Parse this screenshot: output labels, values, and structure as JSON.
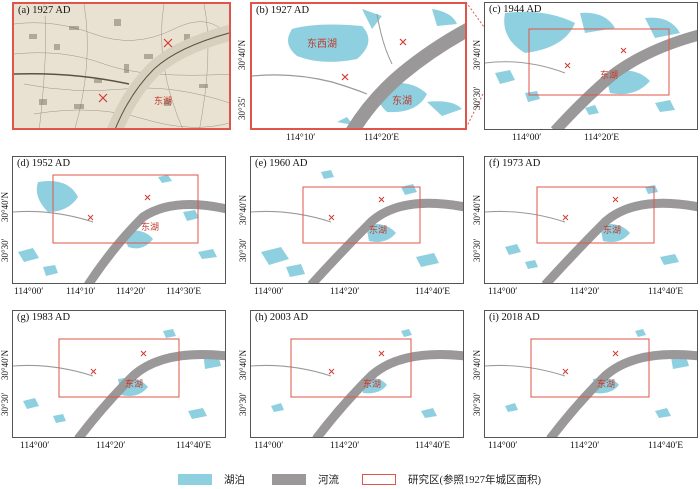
{
  "colors": {
    "lake": "#8fd0e0",
    "river": "#9a9898",
    "study_area": "#e0554a",
    "tributary": "#9a9a9a"
  },
  "panels": {
    "a": {
      "title": "(a) 1927 AD"
    },
    "b": {
      "title": "(b) 1927 AD",
      "lake1": "东西湖",
      "lake2": "东湖",
      "lat": [
        "30°40′N",
        "30°35′"
      ],
      "lon": [
        "114°10′",
        "114°20′E"
      ]
    },
    "c": {
      "title": "(c) 1944 AD",
      "lake": "东湖",
      "lat": [
        "30°40′N",
        "30°30′"
      ],
      "lon": [
        "114°00′",
        "114°20′E"
      ]
    },
    "d": {
      "title": "(d) 1952 AD",
      "lake": "东湖",
      "lat": [
        "30°40′N",
        "30°30′"
      ],
      "lon": [
        "114°00′",
        "114°10′",
        "114°20′",
        "114°30′E"
      ]
    },
    "e": {
      "title": "(e) 1960 AD",
      "lake": "东湖",
      "lat": [
        "30°40′N",
        "30°30′"
      ],
      "lon": [
        "114°00′",
        "114°20′",
        "114°40′E"
      ]
    },
    "f": {
      "title": "(f) 1973 AD",
      "lake": "东湖",
      "lat": [
        "30°40′N",
        "30°30′"
      ],
      "lon": [
        "114°00′",
        "114°20′",
        "114°40′E"
      ]
    },
    "g": {
      "title": "(g) 1983 AD",
      "lake": "东湖",
      "lat": [
        "30°40′N",
        "30°30′"
      ],
      "lon": [
        "114°00′",
        "114°20′",
        "114°40′E"
      ]
    },
    "h": {
      "title": "(h) 2003 AD",
      "lake": "东湖",
      "lat": [
        "30°40′N",
        "30°30′"
      ],
      "lon": [
        "114°00′",
        "114°20′",
        "114°40′E"
      ]
    },
    "i": {
      "title": "(i) 2018 AD",
      "lake": "东湖",
      "lat": [
        "30°40′N",
        "30°30′"
      ],
      "lon": [
        "114°00′",
        "114°20′",
        "114°40′E"
      ]
    }
  },
  "legend": {
    "lake": "湖泊",
    "river": "河流",
    "study_area": "研究区(参照1927年城区面积)"
  }
}
